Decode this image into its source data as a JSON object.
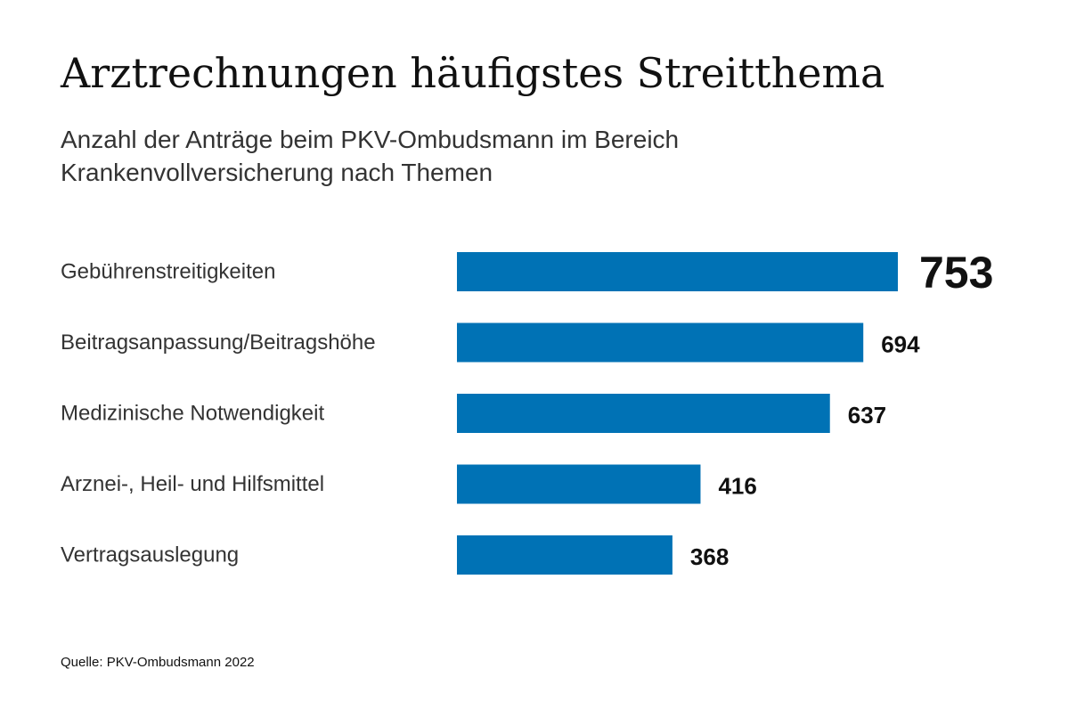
{
  "chart_data": {
    "type": "bar",
    "orientation": "horizontal",
    "title": "Arztrechnungen häufigstes Streitthema",
    "subtitle_lines": [
      "Anzahl der Anträge beim PKV-Ombudsmann im Bereich",
      "Krankenvollversicherung nach Themen"
    ],
    "categories": [
      "Gebührenstreitigkeiten",
      "Beitragsanpassung/Beitragshöhe",
      "Medizinische Notwendigkeit",
      "Arznei-, Heil- und Hilfsmittel",
      "Vertragsauslegung"
    ],
    "values": [
      753,
      694,
      637,
      416,
      368
    ],
    "xlim": [
      0,
      753
    ],
    "grid": false,
    "legend": "none",
    "bar_color": "#0072b5",
    "source": "Quelle: PKV-Ombudsmann 2022"
  }
}
